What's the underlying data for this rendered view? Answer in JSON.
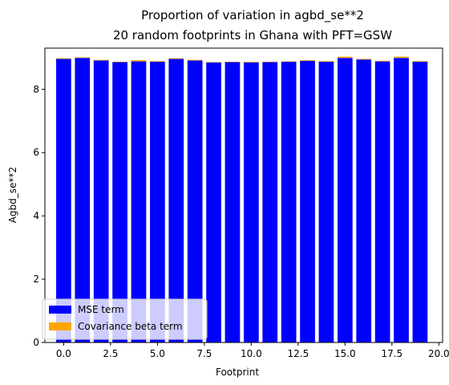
{
  "chart_data": {
    "type": "bar",
    "stacked": true,
    "title": "Proportion of variation in agbd_se**2",
    "subtitle": "20 random footprints in Ghana with PFT=GSW",
    "xlabel": "Footprint",
    "ylabel": "Agbd_se**2",
    "x": [
      0,
      1,
      2,
      3,
      4,
      5,
      6,
      7,
      8,
      9,
      10,
      11,
      12,
      13,
      14,
      15,
      16,
      17,
      18,
      19
    ],
    "xlim": [
      -1.0,
      20.2
    ],
    "ylim": [
      0,
      9.3
    ],
    "xticks": [
      0.0,
      2.5,
      5.0,
      7.5,
      10.0,
      12.5,
      15.0,
      17.5,
      20.0
    ],
    "xtick_labels": [
      "0.0",
      "2.5",
      "5.0",
      "7.5",
      "10.0",
      "12.5",
      "15.0",
      "17.5",
      "20.0"
    ],
    "yticks": [
      0,
      2,
      4,
      6,
      8
    ],
    "ytick_labels": [
      "0",
      "2",
      "4",
      "6",
      "8"
    ],
    "grid": false,
    "legend_position": "lower-left",
    "series": [
      {
        "name": "MSE term",
        "color": "#0000ff",
        "values": [
          8.96,
          8.99,
          8.91,
          8.86,
          8.88,
          8.87,
          8.96,
          8.91,
          8.85,
          8.86,
          8.85,
          8.86,
          8.87,
          8.9,
          8.87,
          8.99,
          8.94,
          8.88,
          8.99,
          8.87
        ]
      },
      {
        "name": "Covariance beta term",
        "color": "#ffa500",
        "values": [
          0.02,
          0.02,
          0.02,
          0.01,
          0.04,
          0.02,
          0.02,
          0.02,
          0.01,
          0.01,
          0.02,
          0.01,
          0.01,
          0.02,
          0.02,
          0.04,
          0.02,
          0.02,
          0.04,
          0.02
        ]
      }
    ]
  }
}
